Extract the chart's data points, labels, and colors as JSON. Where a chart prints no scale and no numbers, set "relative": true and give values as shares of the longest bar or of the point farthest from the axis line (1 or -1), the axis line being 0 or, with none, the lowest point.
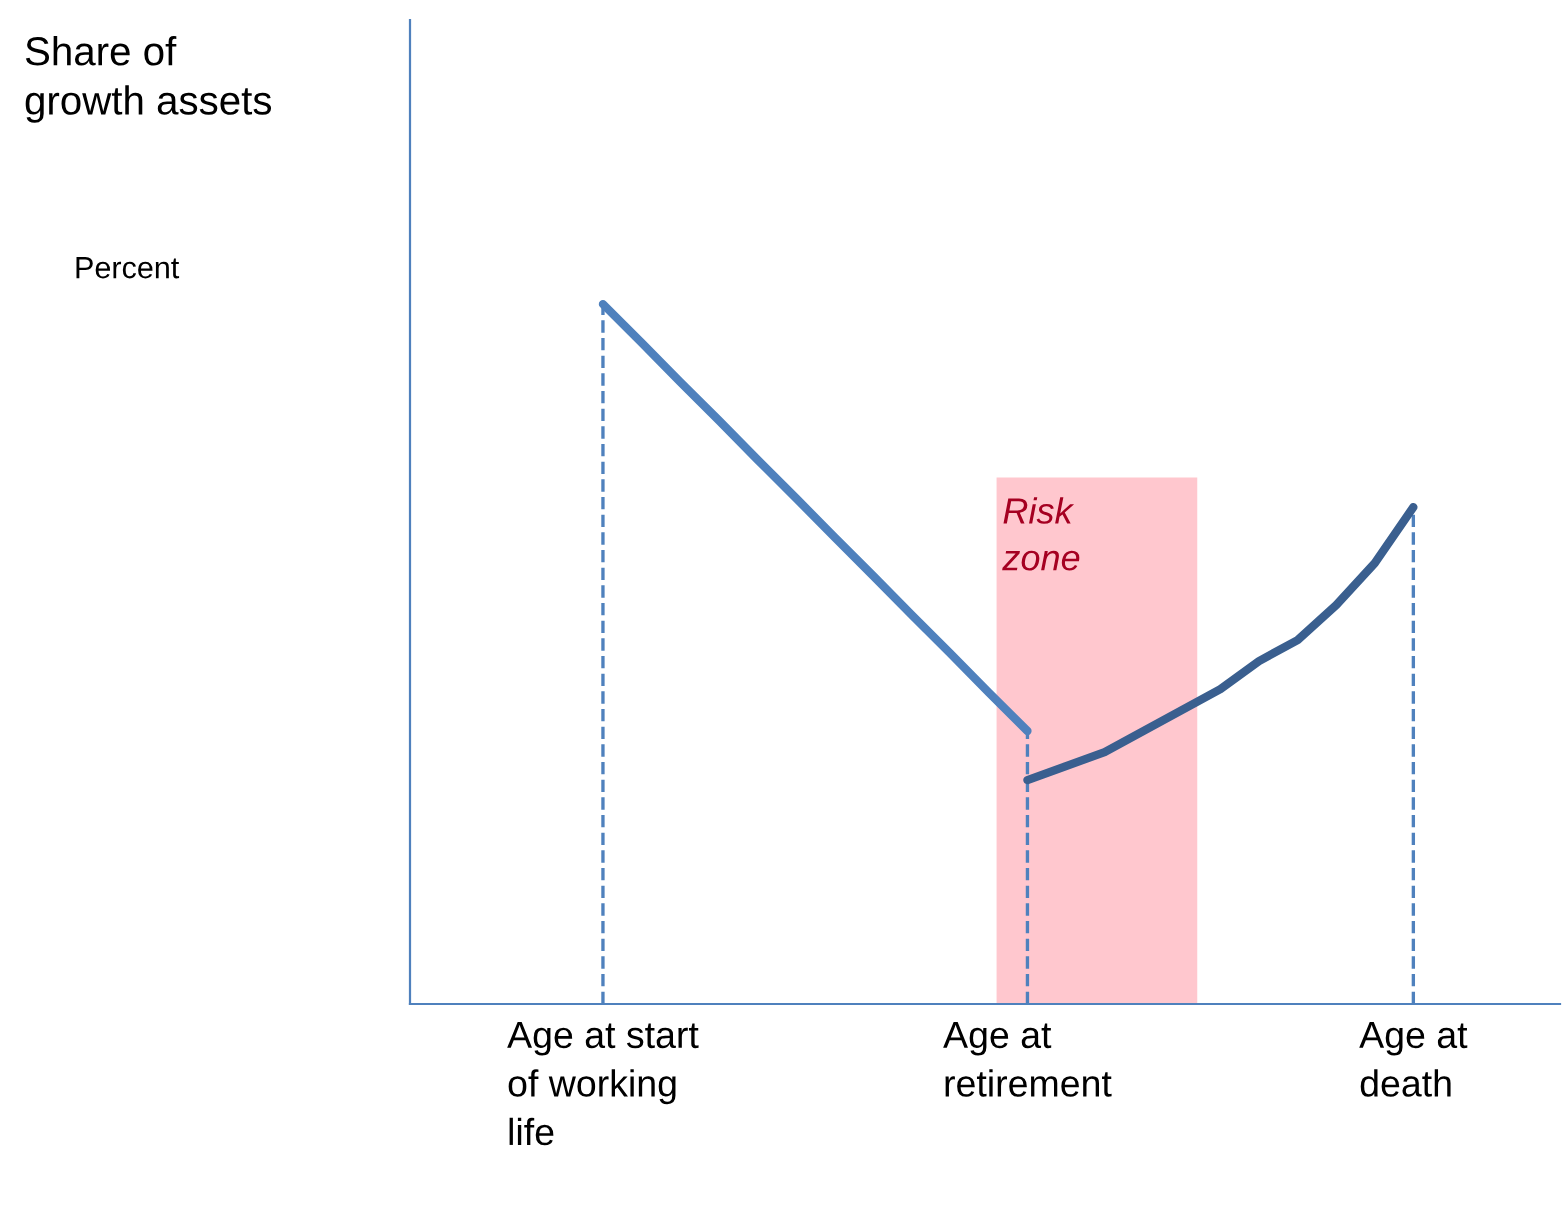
{
  "chart_data": {
    "type": "line",
    "relative": true,
    "annotations": [
      "Share of growth assets",
      "Percent",
      "Risk zone"
    ],
    "categories": [
      null,
      null,
      null,
      null,
      null,
      "Age at start\nof working\nlife",
      null,
      null,
      null,
      null,
      null,
      null,
      null,
      null,
      null,
      null,
      "Age at\nretirement",
      null,
      null,
      null,
      null,
      null,
      null,
      null,
      null,
      null,
      "Age at\ndeath",
      null,
      null,
      null
    ],
    "tick_labels": "x",
    "series": [
      {
        "color": "#4f81bd",
        "values": [
          null,
          null,
          null,
          null,
          null,
          1.0,
          0.945,
          0.889,
          0.834,
          0.778,
          0.723,
          0.667,
          0.612,
          0.556,
          0.501,
          0.445,
          0.39,
          null,
          null,
          null,
          null,
          null,
          null,
          null,
          null,
          null,
          null,
          null,
          null,
          null
        ]
      },
      {
        "color": "#3a5f8f",
        "values": [
          null,
          null,
          null,
          null,
          null,
          null,
          null,
          null,
          null,
          null,
          null,
          null,
          null,
          null,
          null,
          null,
          0.32,
          0.34,
          0.36,
          0.39,
          0.42,
          0.45,
          0.49,
          0.52,
          0.57,
          0.63,
          0.71,
          null,
          null,
          null
        ]
      }
    ],
    "ref_lines": [
      {
        "axis": "x",
        "value": "Age at start\nof working\nlife",
        "line_style": "dashed",
        "color": "#4f81bd"
      },
      {
        "axis": "x",
        "value": "Age at\nretirement",
        "line_style": "dashed",
        "color": "#4f81bd"
      },
      {
        "axis": "x",
        "value": "Age at\ndeath",
        "line_style": "dashed",
        "color": "#4f81bd"
      }
    ],
    "grid": false,
    "legend": false,
    "marker": "none",
    "line_style": "solid"
  }
}
